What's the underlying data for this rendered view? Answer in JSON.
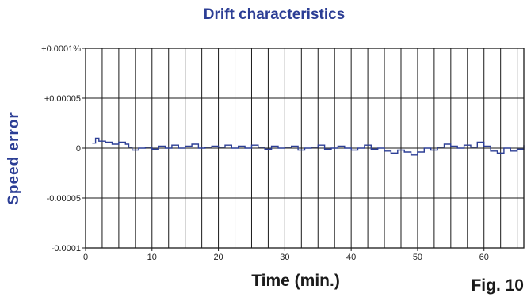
{
  "chart_data": {
    "type": "line",
    "title": "Drift characteristics",
    "xlabel": "Time (min.)",
    "ylabel": "Speed error",
    "figure_label": "Fig. 10",
    "xlim": [
      0,
      66
    ],
    "ylim": [
      -0.0001,
      0.0001
    ],
    "x_ticks": [
      0,
      10,
      20,
      30,
      40,
      50,
      60
    ],
    "x_tick_labels": [
      "0",
      "10",
      "20",
      "30",
      "40",
      "50",
      "60"
    ],
    "y_ticks": [
      0.0001,
      5e-05,
      0,
      -5e-05,
      -0.0001
    ],
    "y_tick_labels": [
      "+0.0001%",
      "+0.00005",
      "0",
      "-0.00005",
      "-0.0001"
    ],
    "grid": true,
    "series": [
      {
        "color": "#2c3e95",
        "x": [
          1,
          1.5,
          2,
          3,
          4,
          5,
          6,
          6.5,
          7,
          8,
          9,
          10,
          11,
          12,
          13,
          14,
          15,
          16,
          17,
          18,
          19,
          20,
          21,
          22,
          23,
          24,
          25,
          26,
          27,
          28,
          29,
          30,
          31,
          32,
          33,
          34,
          35,
          36,
          37,
          38,
          39,
          40,
          41,
          42,
          43,
          44,
          45,
          46,
          47,
          48,
          49,
          50,
          51,
          52,
          53,
          54,
          55,
          56,
          57,
          58,
          59,
          60,
          61,
          62,
          63,
          64,
          65,
          66
        ],
        "y": [
          5e-06,
          1e-05,
          7e-06,
          6e-06,
          4e-06,
          6e-06,
          4e-06,
          1e-06,
          -2e-06,
          0.0,
          1e-06,
          -1e-06,
          2e-06,
          0.0,
          3e-06,
          0.0,
          2e-06,
          4e-06,
          0.0,
          1e-06,
          2e-06,
          1e-06,
          3e-06,
          0.0,
          2e-06,
          0.0,
          3e-06,
          1e-06,
          -1e-06,
          2e-06,
          0.0,
          1e-06,
          2e-06,
          -2e-06,
          0.0,
          1e-06,
          3e-06,
          -1e-06,
          0.0,
          2e-06,
          0.0,
          -2e-06,
          0.0,
          3e-06,
          -1e-06,
          0.0,
          -3e-06,
          -5e-06,
          -2e-06,
          -4e-06,
          -7e-06,
          -4e-06,
          0.0,
          -2e-06,
          1e-06,
          4e-06,
          2e-06,
          0.0,
          3e-06,
          1e-06,
          6e-06,
          2e-06,
          -3e-06,
          -5e-06,
          0.0,
          -3e-06,
          -1e-06,
          3e-06
        ]
      }
    ]
  }
}
